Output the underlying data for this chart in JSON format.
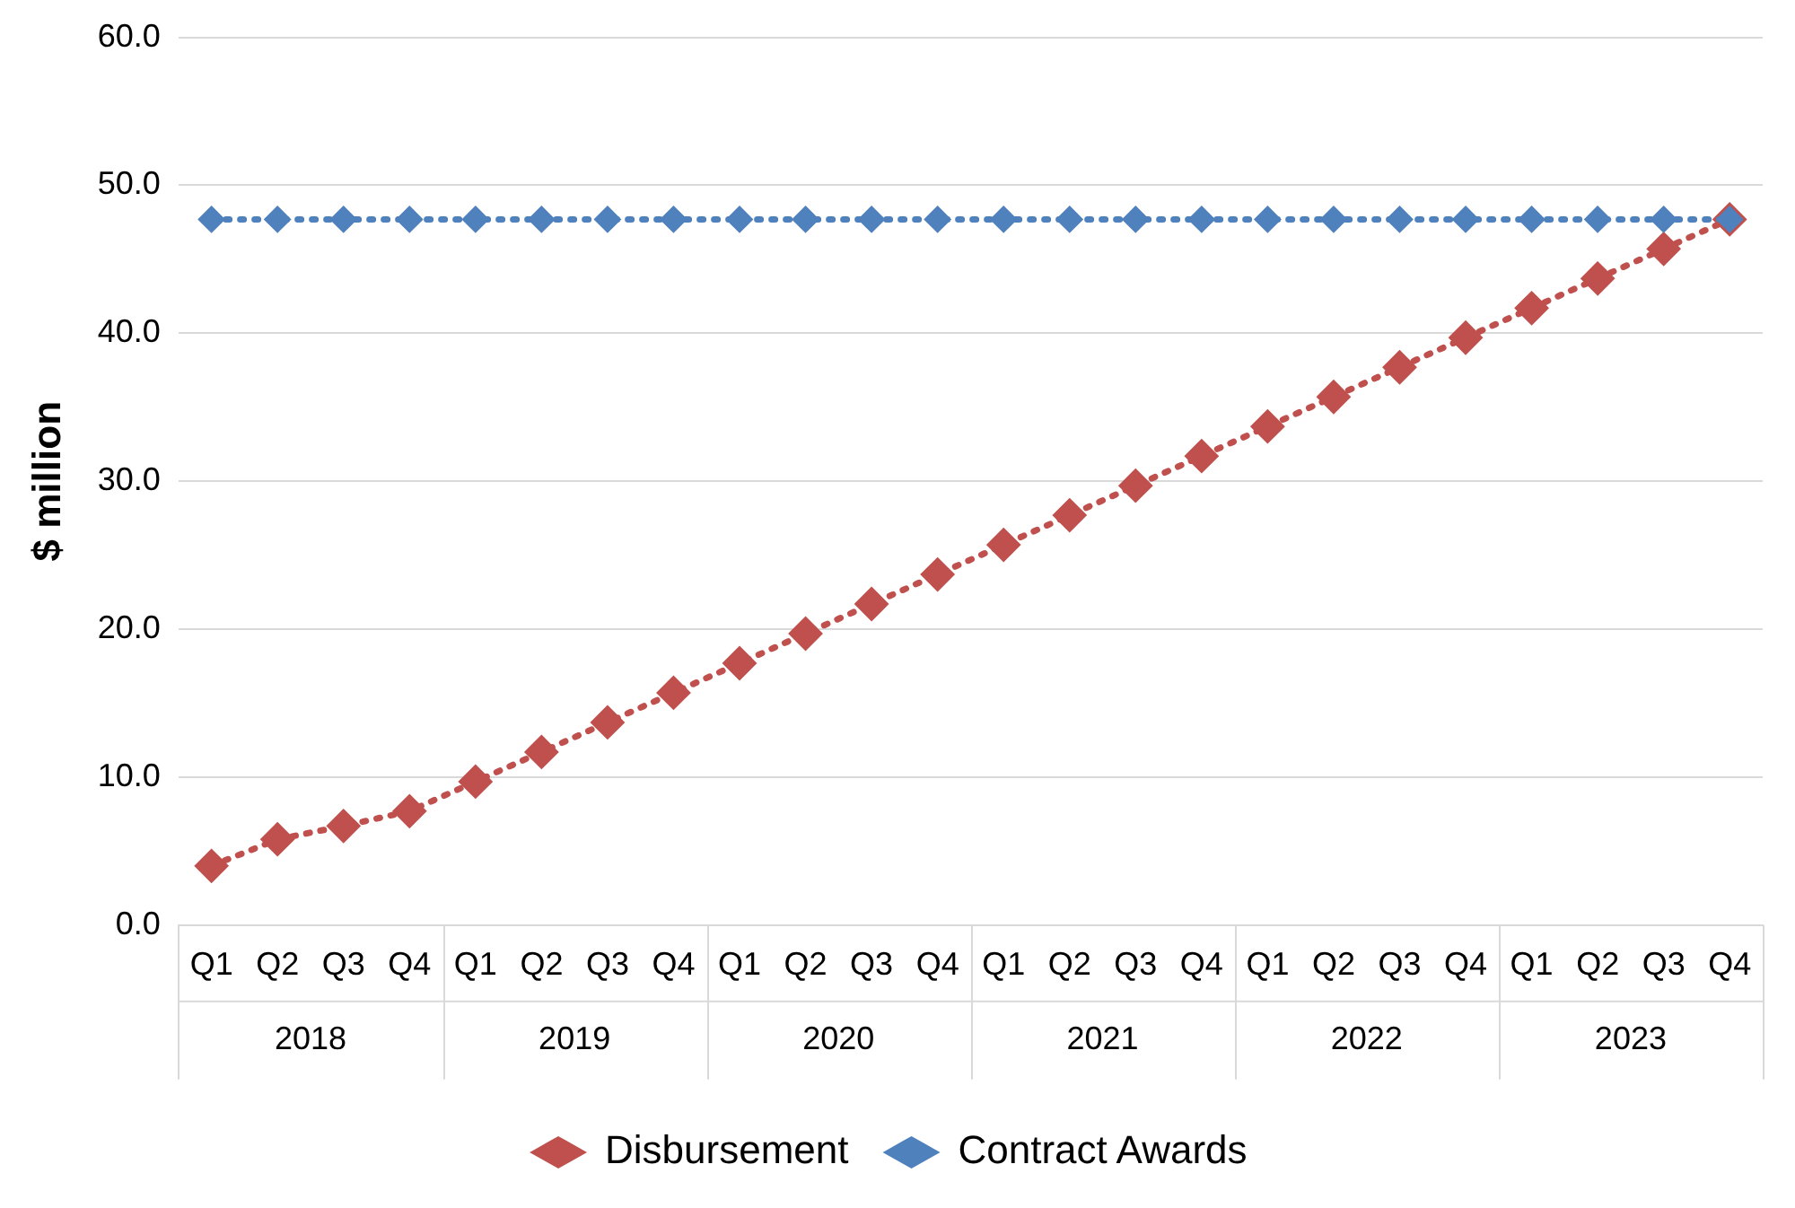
{
  "chart_data": {
    "type": "line",
    "categories": [
      "Q1",
      "Q2",
      "Q3",
      "Q4",
      "Q1",
      "Q2",
      "Q3",
      "Q4",
      "Q1",
      "Q2",
      "Q3",
      "Q4",
      "Q1",
      "Q2",
      "Q3",
      "Q4",
      "Q1",
      "Q2",
      "Q3",
      "Q4",
      "Q1",
      "Q2",
      "Q3",
      "Q4"
    ],
    "series": [
      {
        "name": "Disbursement",
        "color": "#c0504d",
        "values": [
          4.0,
          5.8,
          6.7,
          7.7,
          9.7,
          11.7,
          13.7,
          15.7,
          17.7,
          19.7,
          21.7,
          23.7,
          25.7,
          27.7,
          29.7,
          31.7,
          33.7,
          35.7,
          37.7,
          39.7,
          41.7,
          43.7,
          45.7,
          47.7
        ]
      },
      {
        "name": "Contract Awards",
        "color": "#4f81bd",
        "values": [
          47.7,
          47.7,
          47.7,
          47.7,
          47.7,
          47.7,
          47.7,
          47.7,
          47.7,
          47.7,
          47.7,
          47.7,
          47.7,
          47.7,
          47.7,
          47.7,
          47.7,
          47.7,
          47.7,
          47.7,
          47.7,
          47.7,
          47.7,
          47.7
        ]
      }
    ],
    "ylabel": "$ million",
    "ylim": [
      0,
      60
    ],
    "yticks": [
      {
        "value": 0,
        "label": "0.0"
      },
      {
        "value": 10,
        "label": "10.0"
      },
      {
        "value": 20,
        "label": "20.0"
      },
      {
        "value": 30,
        "label": "30.0"
      },
      {
        "value": 40,
        "label": "40.0"
      },
      {
        "value": 50,
        "label": "50.0"
      },
      {
        "value": 60,
        "label": "60.0"
      }
    ],
    "annotations": [
      "2018",
      "2019",
      "2020",
      "2021",
      "2022",
      "2023"
    ],
    "grid": "y",
    "legend": "bottom",
    "marker": "diamond",
    "line_style": "dotted"
  }
}
